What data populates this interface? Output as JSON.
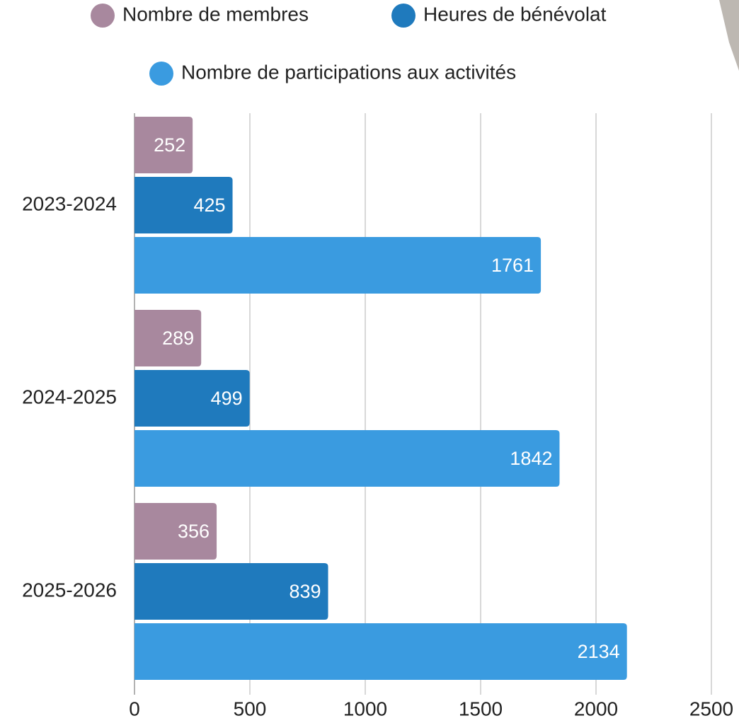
{
  "chart_data": {
    "type": "bar",
    "orientation": "horizontal",
    "categories": [
      "2023-2024",
      "2024-2025",
      "2025-2026"
    ],
    "series": [
      {
        "name": "Nombre de membres",
        "color": "#a8889e",
        "values": [
          252,
          289,
          356
        ]
      },
      {
        "name": "Heures de bénévolat",
        "color": "#1f7abd",
        "values": [
          425,
          499,
          839
        ]
      },
      {
        "name": "Nombre de participations aux activités",
        "color": "#3a9be0",
        "values": [
          1761,
          1842,
          2134
        ]
      }
    ],
    "xlim": [
      0,
      2500
    ],
    "xticks": [
      0,
      500,
      1000,
      1500,
      2000,
      2500
    ],
    "grid": true,
    "legend": "top"
  }
}
